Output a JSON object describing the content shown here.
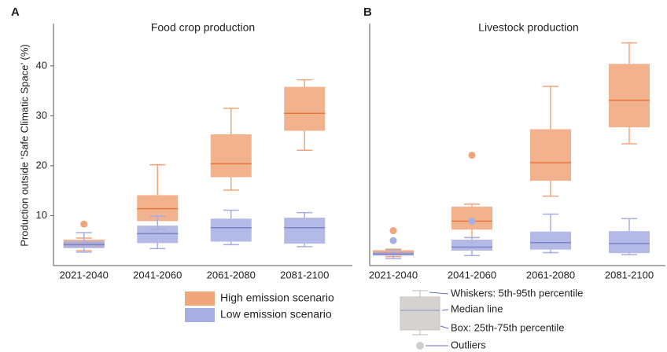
{
  "chart_data": [
    {
      "type": "box",
      "panel": "A",
      "title": "Food crop production",
      "ylabel": "Production outside ‘Safe Climatic Space’ (%)",
      "categories": [
        "2021-2040",
        "2041-2060",
        "2061-2080",
        "2081-2100"
      ],
      "ylim": [
        0,
        48
      ],
      "yticks": [
        10,
        20,
        30,
        40
      ],
      "series": [
        {
          "name": "High emission scenario",
          "color": "#e8743b",
          "fill": "#f0a57a",
          "boxes": [
            {
              "whislo": 3.0,
              "q1": 3.6,
              "med": 4.4,
              "q3": 5.2,
              "whishi": 5.5,
              "outliers": [
                8.3
              ]
            },
            {
              "whislo": 7.3,
              "q1": 8.9,
              "med": 11.4,
              "q3": 14.1,
              "whishi": 20.2,
              "outliers": []
            },
            {
              "whislo": 15.1,
              "q1": 17.7,
              "med": 20.4,
              "q3": 26.3,
              "whishi": 31.5,
              "outliers": []
            },
            {
              "whislo": 23.1,
              "q1": 27.0,
              "med": 30.5,
              "q3": 35.8,
              "whishi": 37.2,
              "outliers": []
            }
          ]
        },
        {
          "name": "Low emission scenario",
          "color": "#7b83c9",
          "fill": "#a7aee2",
          "boxes": [
            {
              "whislo": 2.7,
              "q1": 3.5,
              "med": 4.2,
              "q3": 4.9,
              "whishi": 6.6,
              "outliers": []
            },
            {
              "whislo": 3.4,
              "q1": 4.5,
              "med": 6.4,
              "q3": 8.0,
              "whishi": 9.9,
              "outliers": []
            },
            {
              "whislo": 4.2,
              "q1": 4.8,
              "med": 7.6,
              "q3": 9.4,
              "whishi": 11.1,
              "outliers": []
            },
            {
              "whislo": 3.8,
              "q1": 4.4,
              "med": 7.6,
              "q3": 9.6,
              "whishi": 10.6,
              "outliers": []
            }
          ]
        }
      ]
    },
    {
      "type": "box",
      "panel": "B",
      "title": "Livestock production",
      "categories": [
        "2021-2040",
        "2041-2060",
        "2061-2080",
        "2081-2100"
      ],
      "ylim": [
        0,
        48
      ],
      "series": [
        {
          "name": "High emission scenario",
          "color": "#e8743b",
          "fill": "#f0a57a",
          "boxes": [
            {
              "whislo": 1.8,
              "q1": 2.1,
              "med": 2.6,
              "q3": 3.1,
              "whishi": 3.3,
              "outliers": [
                7.0
              ]
            },
            {
              "whislo": 5.6,
              "q1": 7.2,
              "med": 8.9,
              "q3": 11.8,
              "whishi": 12.3,
              "outliers": [
                22.1
              ]
            },
            {
              "whislo": 13.9,
              "q1": 17.0,
              "med": 20.6,
              "q3": 27.3,
              "whishi": 35.9,
              "outliers": []
            },
            {
              "whislo": 24.4,
              "q1": 27.7,
              "med": 33.1,
              "q3": 40.4,
              "whishi": 44.6,
              "outliers": []
            }
          ]
        },
        {
          "name": "Low emission scenario",
          "color": "#7b83c9",
          "fill": "#a7aee2",
          "boxes": [
            {
              "whislo": 1.4,
              "q1": 2.0,
              "med": 2.3,
              "q3": 2.7,
              "whishi": 3.1,
              "outliers": [
                5.0
              ]
            },
            {
              "whislo": 2.0,
              "q1": 3.0,
              "med": 3.7,
              "q3": 5.2,
              "whishi": 5.6,
              "outliers": [
                8.9
              ]
            },
            {
              "whislo": 2.6,
              "q1": 3.2,
              "med": 4.6,
              "q3": 6.8,
              "whishi": 10.3,
              "outliers": []
            },
            {
              "whislo": 2.2,
              "q1": 2.5,
              "med": 4.4,
              "q3": 6.9,
              "whishi": 9.4,
              "outliers": []
            }
          ]
        }
      ]
    }
  ],
  "key": {
    "whiskers": "Whiskers: 5th-95th percentile",
    "median": "Median line",
    "box": "Box: 25th-75th percentile",
    "outliers": "Outliers"
  }
}
